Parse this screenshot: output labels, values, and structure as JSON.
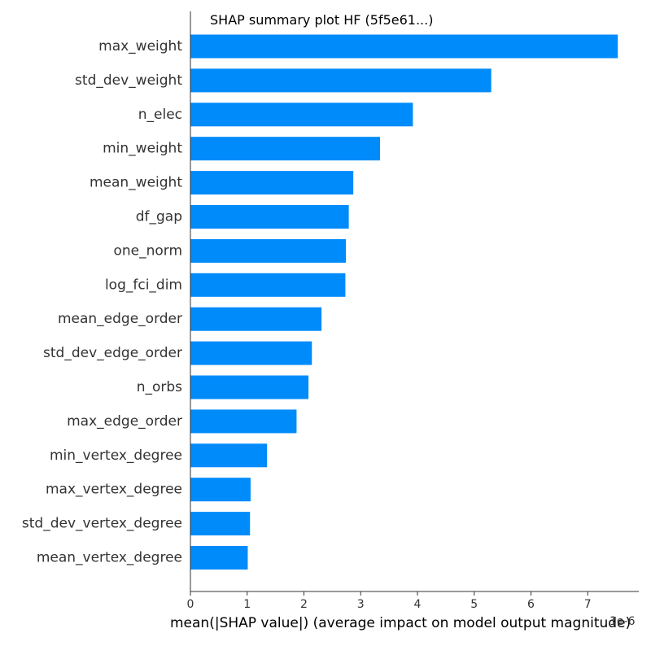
{
  "chart_data": {
    "type": "bar",
    "orientation": "horizontal",
    "title": "SHAP summary plot HF (5f5e61...)",
    "xlabel": "mean(|SHAP value|) (average impact on model output magnitude)",
    "ylabel": "",
    "offset_text": "1e-6",
    "bar_color": "#008bfb",
    "xlim": [
      0,
      7.9
    ],
    "xticks": [
      0,
      1,
      2,
      3,
      4,
      5,
      6,
      7
    ],
    "grid": false,
    "legend": "none",
    "categories": [
      "max_weight",
      "std_dev_weight",
      "n_elec",
      "min_weight",
      "mean_weight",
      "df_gap",
      "one_norm",
      "log_fci_dim",
      "mean_edge_order",
      "std_dev_edge_order",
      "n_orbs",
      "max_edge_order",
      "min_vertex_degree",
      "max_vertex_degree",
      "std_dev_vertex_degree",
      "mean_vertex_degree"
    ],
    "values": [
      7.53,
      5.3,
      3.92,
      3.34,
      2.87,
      2.79,
      2.74,
      2.73,
      2.31,
      2.14,
      2.08,
      1.87,
      1.35,
      1.06,
      1.05,
      1.01
    ]
  }
}
